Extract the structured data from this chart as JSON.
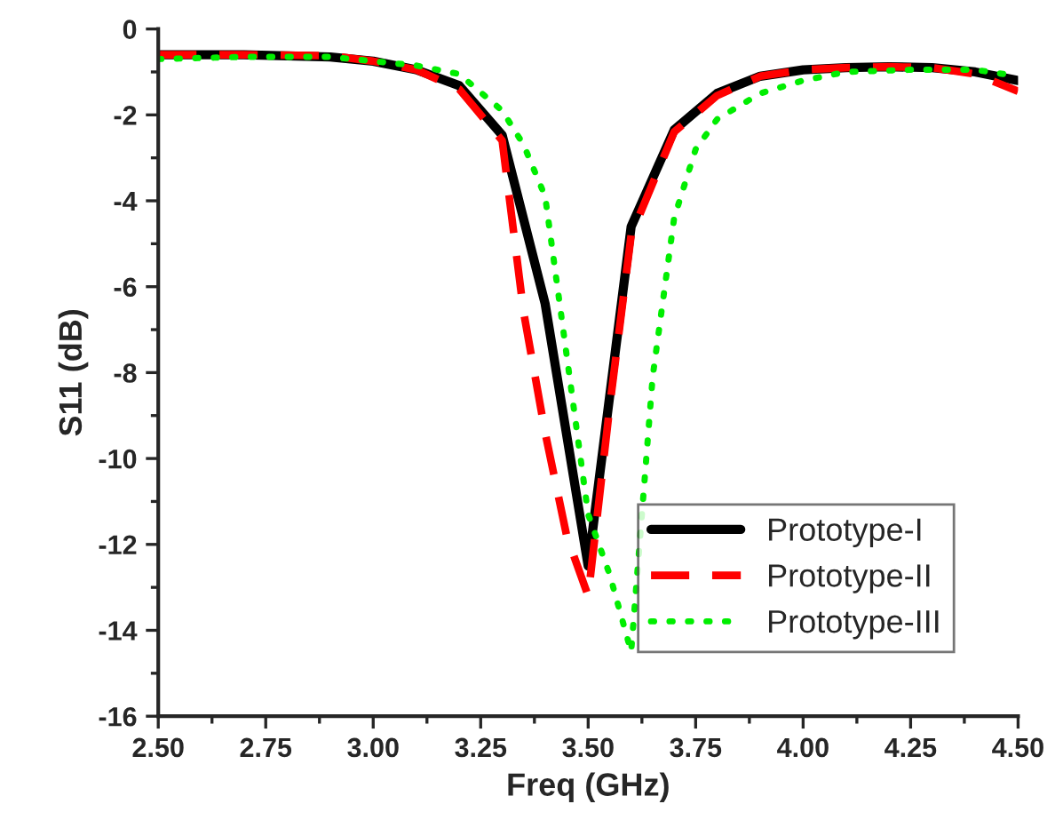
{
  "chart_data": {
    "type": "line",
    "xlabel": "Freq (GHz)",
    "ylabel": "S11 (dB)",
    "xlim": [
      2.5,
      4.5
    ],
    "xticks": [
      {
        "value": 2.5,
        "label": "2.50"
      },
      {
        "value": 2.75,
        "label": "2.75"
      },
      {
        "value": 3.0,
        "label": "3.00"
      },
      {
        "value": 3.25,
        "label": "3.25"
      },
      {
        "value": 3.5,
        "label": "3.50"
      },
      {
        "value": 3.75,
        "label": "3.75"
      },
      {
        "value": 4.0,
        "label": "4.00"
      },
      {
        "value": 4.25,
        "label": "4.25"
      },
      {
        "value": 4.5,
        "label": "4.50"
      }
    ],
    "ylim": [
      -16,
      0
    ],
    "yticks": [
      -16,
      -14,
      -12,
      -10,
      -8,
      -6,
      -4,
      -2,
      0
    ],
    "legend": "bottom right",
    "grid": false,
    "series": [
      {
        "name": "Prototype-I",
        "color": "#000000",
        "line_style": "solid",
        "x": [
          2.5,
          2.7,
          2.9,
          3.0,
          3.1,
          3.2,
          3.3,
          3.4,
          3.5,
          3.6,
          3.7,
          3.8,
          3.9,
          4.0,
          4.1,
          4.2,
          4.3,
          4.4,
          4.5
        ],
        "values": [
          -0.6,
          -0.6,
          -0.65,
          -0.75,
          -0.95,
          -1.32,
          -2.47,
          -6.4,
          -12.5,
          -4.6,
          -2.35,
          -1.5,
          -1.1,
          -0.95,
          -0.9,
          -0.88,
          -0.9,
          -1.0,
          -1.2
        ]
      },
      {
        "name": "Prototype-II",
        "color": "#ff0000",
        "line_style": "dashed",
        "x": [
          2.5,
          2.7,
          2.9,
          3.0,
          3.1,
          3.2,
          3.3,
          3.35,
          3.4,
          3.45,
          3.5,
          3.55,
          3.6,
          3.7,
          3.8,
          3.9,
          4.0,
          4.1,
          4.2,
          4.3,
          4.4,
          4.5
        ],
        "values": [
          -0.6,
          -0.6,
          -0.62,
          -0.75,
          -0.95,
          -1.4,
          -2.6,
          -6.6,
          -9.4,
          -11.8,
          -13.2,
          -8.8,
          -4.8,
          -2.4,
          -1.55,
          -1.1,
          -0.95,
          -0.9,
          -0.88,
          -0.9,
          -1.05,
          -1.45
        ]
      },
      {
        "name": "Prototype-III",
        "color": "#00ee00",
        "line_style": "dotted",
        "x": [
          2.5,
          2.7,
          2.9,
          3.0,
          3.1,
          3.2,
          3.3,
          3.35,
          3.4,
          3.45,
          3.5,
          3.55,
          3.6,
          3.65,
          3.7,
          3.75,
          3.8,
          3.9,
          4.0,
          4.1,
          4.25,
          4.4,
          4.5
        ],
        "values": [
          -0.7,
          -0.65,
          -0.65,
          -0.75,
          -0.85,
          -1.05,
          -1.9,
          -2.7,
          -3.9,
          -7.6,
          -11.3,
          -12.7,
          -14.5,
          -8.1,
          -4.4,
          -2.8,
          -2.1,
          -1.5,
          -1.2,
          -1.0,
          -0.95,
          -0.95,
          -1.1
        ]
      }
    ]
  }
}
